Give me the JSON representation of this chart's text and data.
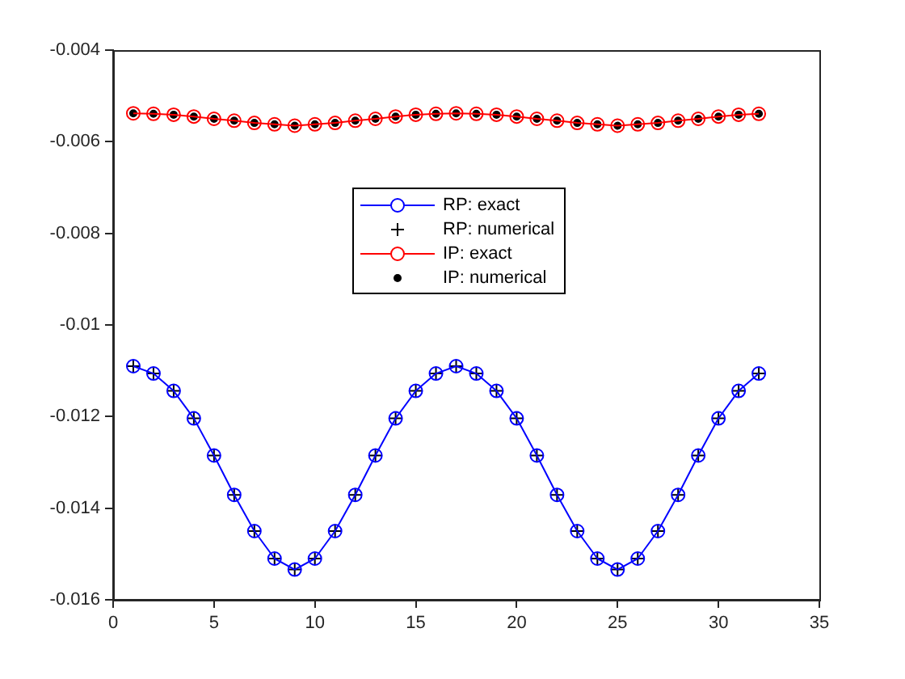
{
  "chart_data": {
    "type": "line",
    "x": [
      1,
      2,
      3,
      4,
      5,
      6,
      7,
      8,
      9,
      10,
      11,
      12,
      13,
      14,
      15,
      16,
      17,
      18,
      19,
      20,
      21,
      22,
      23,
      24,
      25,
      26,
      27,
      28,
      29,
      30,
      31,
      32
    ],
    "series": [
      {
        "name": "RP: exact",
        "type": "line",
        "marker": "circle",
        "color": "#0000ff",
        "values": [
          -0.0109,
          -0.01106,
          -0.01144,
          -0.01204,
          -0.01285,
          -0.01371,
          -0.0145,
          -0.0151,
          -0.01534,
          -0.0151,
          -0.0145,
          -0.01371,
          -0.01285,
          -0.01204,
          -0.01144,
          -0.01106,
          -0.0109,
          -0.01106,
          -0.01144,
          -0.01204,
          -0.01285,
          -0.01371,
          -0.0145,
          -0.0151,
          -0.01534,
          -0.0151,
          -0.0145,
          -0.01371,
          -0.01285,
          -0.01204,
          -0.01144,
          -0.01106
        ]
      },
      {
        "name": "RP: numerical",
        "type": "scatter",
        "marker": "cross",
        "color": "#000000",
        "values": [
          -0.0109,
          -0.01106,
          -0.01144,
          -0.01204,
          -0.01285,
          -0.01371,
          -0.0145,
          -0.0151,
          -0.01534,
          -0.0151,
          -0.0145,
          -0.01371,
          -0.01285,
          -0.01204,
          -0.01144,
          -0.01106,
          -0.0109,
          -0.01106,
          -0.01144,
          -0.01204,
          -0.01285,
          -0.01371,
          -0.0145,
          -0.0151,
          -0.01534,
          -0.0151,
          -0.0145,
          -0.01371,
          -0.01285,
          -0.01204,
          -0.01144,
          -0.01106
        ]
      },
      {
        "name": "IP: exact",
        "type": "line",
        "marker": "circle",
        "color": "#ff0000",
        "values": [
          -0.00538,
          -0.00539,
          -0.00541,
          -0.00545,
          -0.0055,
          -0.00554,
          -0.00559,
          -0.00562,
          -0.00565,
          -0.00562,
          -0.00559,
          -0.00554,
          -0.0055,
          -0.00545,
          -0.00541,
          -0.00539,
          -0.00538,
          -0.00539,
          -0.00541,
          -0.00545,
          -0.0055,
          -0.00554,
          -0.00559,
          -0.00562,
          -0.00565,
          -0.00562,
          -0.00559,
          -0.00554,
          -0.0055,
          -0.00545,
          -0.00541,
          -0.00539
        ]
      },
      {
        "name": "IP: numerical",
        "type": "scatter",
        "marker": "dot",
        "color": "#000000",
        "values": [
          -0.00538,
          -0.00539,
          -0.00541,
          -0.00545,
          -0.0055,
          -0.00554,
          -0.00559,
          -0.00562,
          -0.00565,
          -0.00562,
          -0.00559,
          -0.00554,
          -0.0055,
          -0.00545,
          -0.00541,
          -0.00539,
          -0.00538,
          -0.00539,
          -0.00541,
          -0.00545,
          -0.0055,
          -0.00554,
          -0.00559,
          -0.00562,
          -0.00565,
          -0.00562,
          -0.00559,
          -0.00554,
          -0.0055,
          -0.00545,
          -0.00541,
          -0.00539
        ]
      }
    ],
    "xlim": [
      0,
      35
    ],
    "xticks": [
      0,
      5,
      10,
      15,
      20,
      25,
      30,
      35
    ],
    "ylim": [
      -0.016,
      -0.004
    ],
    "yticks": [
      -0.016,
      -0.014,
      -0.012,
      -0.01,
      -0.008,
      -0.006,
      -0.004
    ],
    "grid": false,
    "legend": "center"
  }
}
